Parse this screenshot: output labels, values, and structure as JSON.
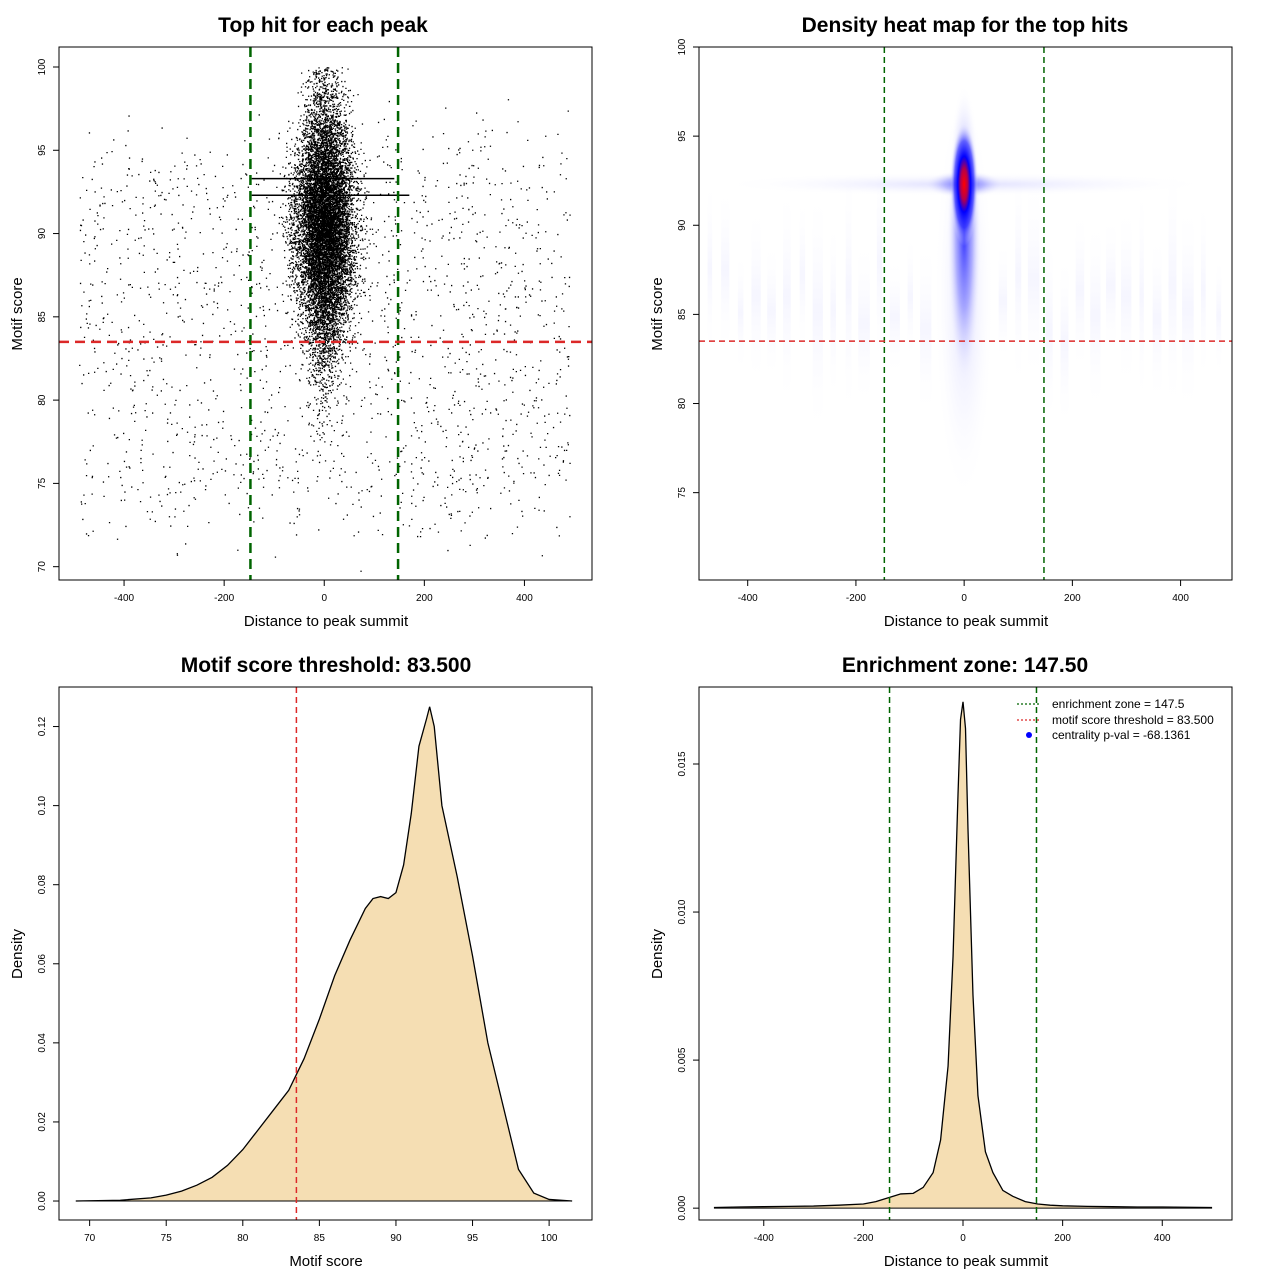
{
  "figure_title": "",
  "colors": {
    "green_line": "#006400",
    "red_line": "#DC2828",
    "density_fill": "#F5DEB3",
    "black": "#000000",
    "blue_point": "#0000FF"
  },
  "chart_data": [
    {
      "id": "p1",
      "type": "scatter",
      "title": "Top hit for each peak",
      "xlabel": "Distance to peak summit",
      "ylabel": "Motif score",
      "xlim": [
        -530,
        535
      ],
      "ylim": [
        69.2,
        101.2
      ],
      "xticks": [
        -400,
        -200,
        0,
        200,
        400
      ],
      "yticks": [
        70,
        75,
        80,
        85,
        90,
        95,
        100
      ],
      "vlines": [
        -147.5,
        147.5
      ],
      "hline": 83.5,
      "hsegments": [
        {
          "y": 93.3,
          "x0": -145,
          "x1": 140
        },
        {
          "y": 92.3,
          "x0": -145,
          "x1": 170
        }
      ],
      "point_model": {
        "n_center": 11000,
        "center_mean_x": 0,
        "center_sd_x": 28,
        "center_score_mean": 90.5,
        "center_score_sd": 4.2,
        "n_background": 1800,
        "background_xrange": [
          -490,
          490
        ],
        "background_score_range": [
          73,
          95
        ],
        "score_max": 100
      }
    },
    {
      "id": "p2",
      "type": "heatmap",
      "title": "Density heat map for the top hits",
      "xlabel": "Distance to peak summit",
      "ylabel": "Motif score",
      "xlim": [
        -490,
        495
      ],
      "ylim": [
        70.1,
        100
      ],
      "xticks": [
        -400,
        -200,
        0,
        200,
        400
      ],
      "yticks": [
        75,
        80,
        85,
        90,
        95,
        100
      ],
      "vlines": [
        -147.5,
        147.5
      ],
      "hline": 83.5,
      "peak": {
        "x": 0,
        "y": 92.3
      },
      "colormap": [
        "#FFFFFF",
        "#0000FF",
        "#FF0000"
      ]
    },
    {
      "id": "p3",
      "type": "area",
      "title": "Motif score threshold: 83.500",
      "xlabel": "Motif score",
      "ylabel": "Density",
      "xlim": [
        68,
        102.8
      ],
      "ylim": [
        -0.0048,
        0.13
      ],
      "xticks": [
        70,
        75,
        80,
        85,
        90,
        95,
        100
      ],
      "yticks": [
        0.0,
        0.02,
        0.04,
        0.06,
        0.08,
        0.1,
        0.12
      ],
      "ytick_labels": [
        "0.00",
        "0.02",
        "0.04",
        "0.06",
        "0.08",
        "0.10",
        "0.12"
      ],
      "vlines": [
        83.5
      ],
      "x": [
        69.1,
        72,
        74,
        75,
        76,
        77,
        78,
        79,
        80,
        81,
        82,
        83,
        84,
        85,
        86,
        87,
        88,
        88.5,
        89,
        89.5,
        90,
        90.5,
        91,
        91.5,
        92,
        92.2,
        92.5,
        93,
        94,
        95,
        96,
        96.5,
        97,
        98,
        99,
        100,
        101.5
      ],
      "values": [
        0.0,
        0.0002,
        0.0008,
        0.0015,
        0.0025,
        0.004,
        0.006,
        0.009,
        0.013,
        0.018,
        0.023,
        0.028,
        0.036,
        0.046,
        0.057,
        0.066,
        0.074,
        0.0765,
        0.077,
        0.0765,
        0.078,
        0.085,
        0.098,
        0.115,
        0.122,
        0.125,
        0.12,
        0.1,
        0.082,
        0.062,
        0.04,
        0.032,
        0.024,
        0.008,
        0.002,
        0.0004,
        0.0
      ]
    },
    {
      "id": "p4",
      "type": "area",
      "title": "Enrichment zone: 147.50",
      "xlabel": "Distance to peak summit",
      "ylabel": "Density",
      "xlim": [
        -530,
        540
      ],
      "ylim": [
        -0.0004,
        0.0176
      ],
      "xticks": [
        -400,
        -200,
        0,
        200,
        400
      ],
      "yticks": [
        0.0,
        0.005,
        0.01,
        0.015
      ],
      "ytick_labels": [
        "0.000",
        "0.005",
        "0.010",
        "0.015"
      ],
      "vlines": [
        -147.5,
        147.5
      ],
      "x": [
        -500,
        -450,
        -400,
        -350,
        -300,
        -250,
        -200,
        -175,
        -150,
        -125,
        -100,
        -80,
        -60,
        -45,
        -30,
        -20,
        -10,
        -5,
        0,
        5,
        10,
        20,
        30,
        45,
        60,
        80,
        100,
        125,
        150,
        175,
        200,
        250,
        300,
        350,
        400,
        450,
        500
      ],
      "values": [
        2e-05,
        4e-05,
        5e-05,
        6e-05,
        7e-05,
        0.0001,
        0.00014,
        0.00022,
        0.00035,
        0.00048,
        0.0005,
        0.0007,
        0.0012,
        0.0023,
        0.0048,
        0.0085,
        0.014,
        0.0165,
        0.0171,
        0.0162,
        0.0128,
        0.0072,
        0.0038,
        0.0019,
        0.0012,
        0.0006,
        0.0004,
        0.00022,
        0.00014,
        0.0001,
        8e-05,
        6e-05,
        5e-05,
        4e-05,
        4e-05,
        3e-05,
        2e-05
      ],
      "legend": [
        {
          "label": "enrichment zone = 147.5",
          "style": "dotted-line",
          "color": "#006400"
        },
        {
          "label": "motif score threshold = 83.500",
          "style": "dotted-line",
          "color": "#DC2828"
        },
        {
          "label": "centrality p-val = -68.1361",
          "style": "point",
          "color": "#0000FF"
        }
      ],
      "legend_position": "top-right"
    }
  ]
}
